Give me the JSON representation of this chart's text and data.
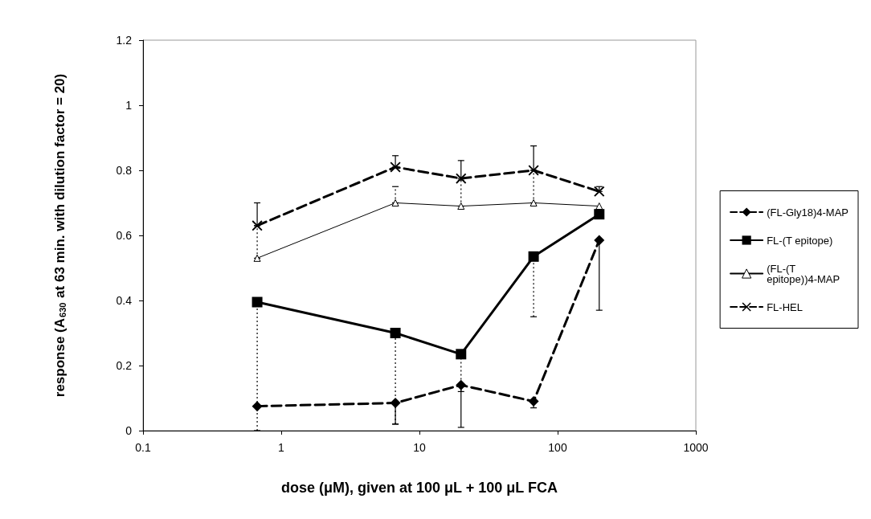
{
  "chart_data": {
    "type": "line",
    "xlabel": "dose (μM), given at 100 μL + 100 μL FCA",
    "ylabel": "response (A$_{630}$ at 63 min. with dilution factor = 20)",
    "x": [
      0.67,
      6.7,
      20,
      67,
      200
    ],
    "series": [
      {
        "name": "(FL-Gly18)4-MAP",
        "color": "#000000",
        "marker": "diamond",
        "line_style": "dashed",
        "values": [
          0.075,
          0.085,
          0.14,
          0.09,
          0.585
        ],
        "errors": [
          null,
          [
            0.02,
            0.085
          ],
          [
            0.01,
            0.14
          ],
          [
            0.07,
            0.09
          ],
          [
            0.37,
            0.585
          ]
        ]
      },
      {
        "name": "FL-(T epitope)",
        "color": "#000000",
        "marker": "square",
        "line_style": "solid",
        "values": [
          0.395,
          0.3,
          0.235,
          0.535,
          0.665
        ],
        "errors": [
          [
            0,
            0.395
          ],
          [
            0.02,
            0.3
          ],
          [
            0.12,
            0.235
          ],
          [
            0.35,
            0.535
          ],
          null
        ]
      },
      {
        "name": "(FL-(T epitope))4-MAP",
        "color": "#000000",
        "marker": "triangle",
        "line_style": "solid",
        "values": [
          0.53,
          0.7,
          0.69,
          0.7,
          0.69
        ],
        "errors": [
          [
            0.53,
            0.63
          ],
          [
            0.7,
            0.75
          ],
          [
            0.69,
            0.77
          ],
          [
            0.7,
            0.8
          ],
          null
        ]
      },
      {
        "name": "FL-HEL",
        "color": "#000000",
        "marker": "cross",
        "line_style": "dashed",
        "values": [
          0.63,
          0.81,
          0.775,
          0.8,
          0.735
        ],
        "errors": [
          [
            0.63,
            0.7
          ],
          [
            0.81,
            0.845
          ],
          [
            0.775,
            0.83
          ],
          [
            0.8,
            0.875
          ],
          [
            0.735,
            0.75
          ]
        ]
      }
    ],
    "xlim": [
      0.1,
      1000
    ],
    "xticks": [
      0.1,
      1,
      10,
      100,
      1000
    ],
    "log": "x",
    "ylim": [
      0,
      1.2
    ],
    "yticks": [
      0,
      0.2,
      0.4,
      0.6,
      0.8,
      1,
      1.2
    ],
    "grid": false,
    "legend": "right"
  }
}
